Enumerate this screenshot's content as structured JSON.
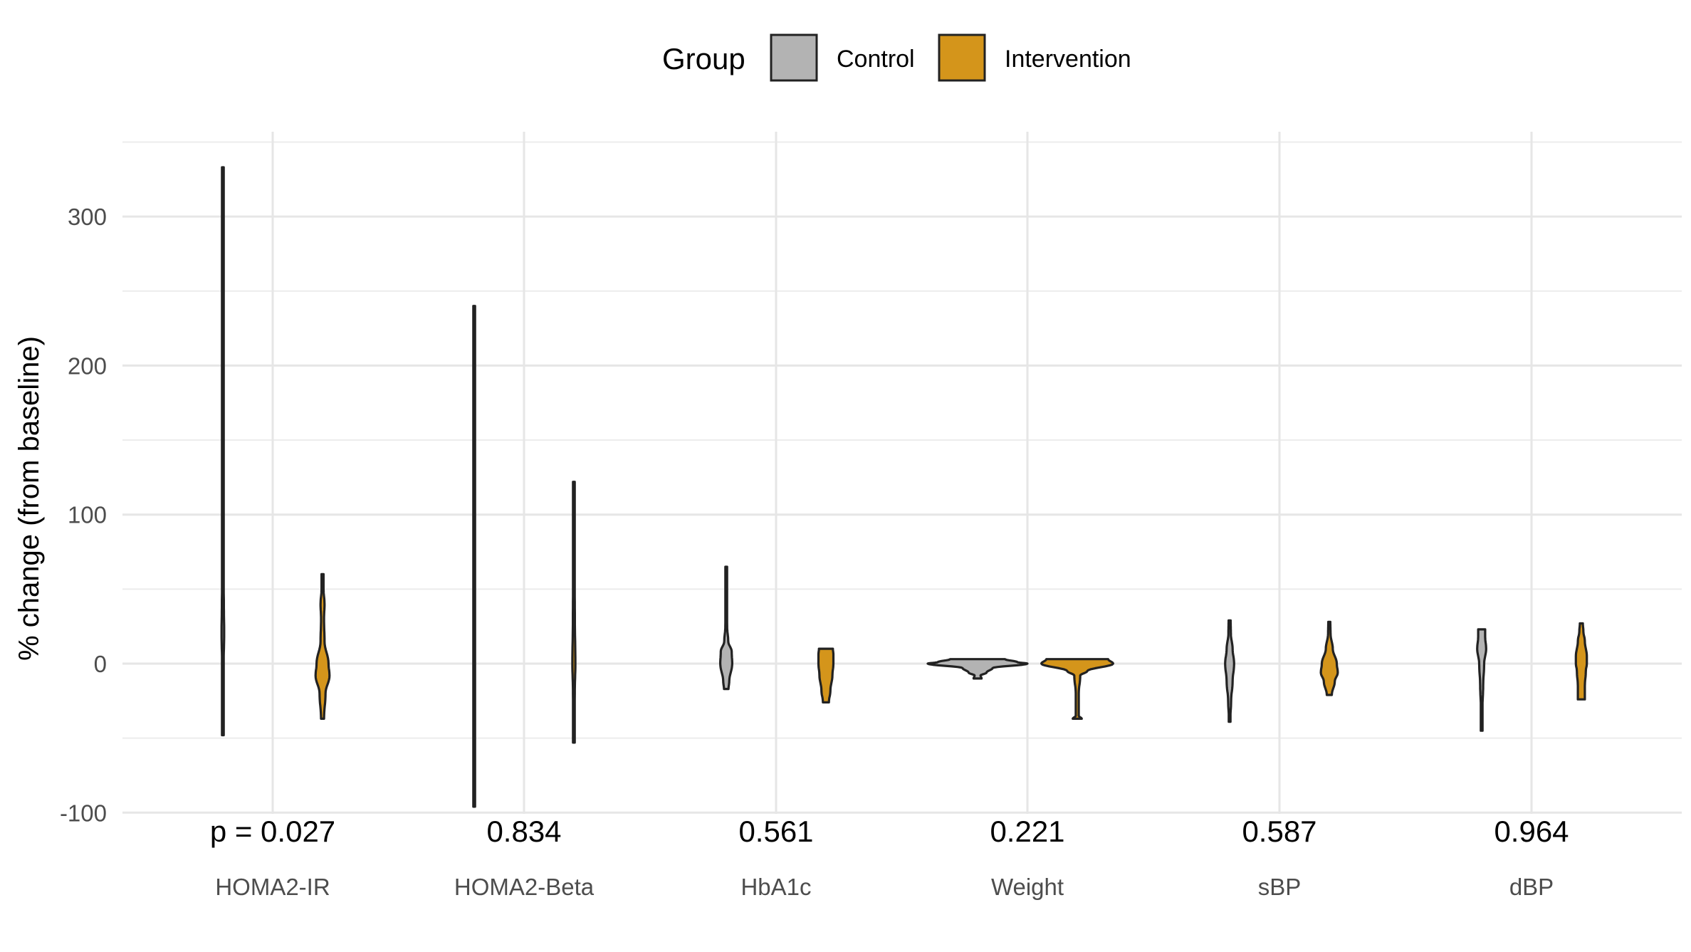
{
  "chart_data": {
    "type": "violin",
    "ylabel": "% change (from baseline)",
    "xlabel": "",
    "ylim": [
      -100,
      340
    ],
    "yticks": [
      -100,
      0,
      100,
      200,
      300
    ],
    "grid": true,
    "legend": {
      "title": "Group",
      "placement": "top",
      "entries": [
        {
          "name": "Control",
          "color": "#b3b3b3"
        },
        {
          "name": "Intervention",
          "color": "#d4951b"
        }
      ]
    },
    "categories": [
      "HOMA2-IR",
      "HOMA2-Beta",
      "HbA1c",
      "Weight",
      "sBP",
      "dBP"
    ],
    "p_values": [
      "p = 0.027",
      "0.834",
      "0.561",
      "0.221",
      "0.587",
      "0.964"
    ],
    "series": [
      {
        "name": "Control",
        "color": "#b3b3b3",
        "distributions": [
          {
            "min": -48,
            "max": 333,
            "profile": [
              [
                -48,
                0.3
              ],
              [
                -30,
                0.5
              ],
              [
                0,
                1.6
              ],
              [
                20,
                2.6
              ],
              [
                40,
                2.0
              ],
              [
                60,
                0.8
              ],
              [
                100,
                0.35
              ],
              [
                200,
                0.25
              ],
              [
                333,
                0.25
              ]
            ]
          },
          {
            "min": -96,
            "max": 240,
            "profile": [
              [
                -96,
                0.3
              ],
              [
                -50,
                0.6
              ],
              [
                0,
                1.5
              ],
              [
                30,
                1.5
              ],
              [
                80,
                0.6
              ],
              [
                150,
                0.35
              ],
              [
                240,
                0.3
              ]
            ]
          },
          {
            "min": -17,
            "max": 65,
            "profile": [
              [
                -17,
                4.5
              ],
              [
                -12,
                6
              ],
              [
                0,
                12
              ],
              [
                8,
                11
              ],
              [
                15,
                4
              ],
              [
                25,
                1.8
              ],
              [
                45,
                1.3
              ],
              [
                65,
                1.3
              ]
            ]
          },
          {
            "min": -10,
            "max": 3,
            "profile": [
              [
                -10,
                8
              ],
              [
                -8,
                6
              ],
              [
                -6,
                18
              ],
              [
                -3,
                30
              ],
              [
                0,
                100
              ],
              [
                1,
                80
              ],
              [
                3,
                55
              ]
            ]
          },
          {
            "min": -39,
            "max": 29,
            "profile": [
              [
                -39,
                1
              ],
              [
                -25,
                3
              ],
              [
                -12,
                6
              ],
              [
                0,
                9
              ],
              [
                10,
                6
              ],
              [
                20,
                2.5
              ],
              [
                29,
                2
              ]
            ]
          },
          {
            "min": -45,
            "max": 23,
            "profile": [
              [
                -45,
                0.8
              ],
              [
                -30,
                1.5
              ],
              [
                -15,
                3
              ],
              [
                0,
                5
              ],
              [
                10,
                9
              ],
              [
                18,
                7
              ],
              [
                23,
                7
              ]
            ]
          }
        ]
      },
      {
        "name": "Intervention",
        "color": "#d4951b",
        "distributions": [
          {
            "min": -37,
            "max": 60,
            "profile": [
              [
                -37,
                3
              ],
              [
                -20,
                6
              ],
              [
                -8,
                14
              ],
              [
                0,
                12
              ],
              [
                15,
                4
              ],
              [
                30,
                3
              ],
              [
                40,
                4
              ],
              [
                50,
                2
              ],
              [
                60,
                2
              ]
            ]
          },
          {
            "min": -53,
            "max": 122,
            "profile": [
              [
                -53,
                0.8
              ],
              [
                -20,
                1.8
              ],
              [
                0,
                3
              ],
              [
                30,
                2
              ],
              [
                60,
                1.5
              ],
              [
                100,
                1.2
              ],
              [
                122,
                1
              ]
            ]
          },
          {
            "min": -26,
            "max": 10,
            "profile": [
              [
                -26,
                6
              ],
              [
                -18,
                9
              ],
              [
                -8,
                13
              ],
              [
                0,
                15
              ],
              [
                6,
                15
              ],
              [
                10,
                14
              ]
            ]
          },
          {
            "min": -37,
            "max": 3,
            "profile": [
              [
                -37,
                9
              ],
              [
                -35,
                3
              ],
              [
                -20,
                3
              ],
              [
                -8,
                6
              ],
              [
                -5,
                20
              ],
              [
                0,
                72
              ],
              [
                3,
                62
              ]
            ]
          },
          {
            "min": -21,
            "max": 28,
            "profile": [
              [
                -21,
                5
              ],
              [
                -12,
                11
              ],
              [
                -6,
                17
              ],
              [
                0,
                15
              ],
              [
                10,
                7
              ],
              [
                20,
                2.5
              ],
              [
                28,
                2
              ]
            ]
          },
          {
            "min": -24,
            "max": 27,
            "profile": [
              [
                -24,
                7
              ],
              [
                -15,
                7
              ],
              [
                -5,
                9
              ],
              [
                0,
                11
              ],
              [
                5,
                11
              ],
              [
                15,
                7
              ],
              [
                22,
                4
              ],
              [
                27,
                3
              ]
            ]
          }
        ]
      }
    ]
  }
}
